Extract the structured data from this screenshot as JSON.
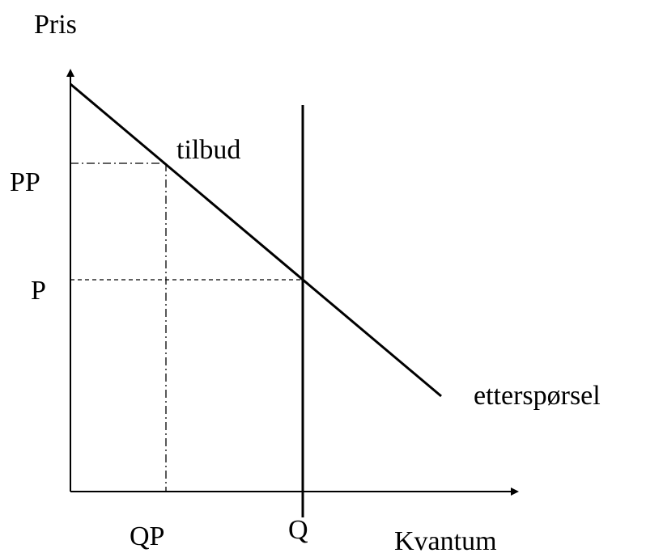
{
  "axes": {
    "y_label": "Pris",
    "x_label": "Kvantum"
  },
  "curves": {
    "supply_label": "tilbud",
    "demand_label": "etterspørsel"
  },
  "price_labels": [
    "PP",
    "P"
  ],
  "quantity_labels": [
    "QP",
    "Q"
  ]
}
